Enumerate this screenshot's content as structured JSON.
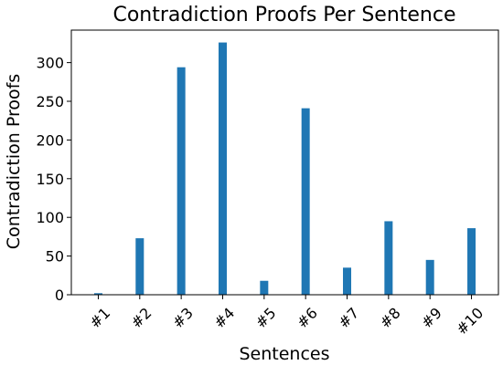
{
  "chart_data": {
    "type": "bar",
    "title": "Contradiction Proofs Per Sentence",
    "xlabel": "Sentences",
    "ylabel": "Contradiction Proofs",
    "categories": [
      "#1",
      "#2",
      "#3",
      "#4",
      "#5",
      "#6",
      "#7",
      "#8",
      "#9",
      "#10"
    ],
    "values": [
      2,
      73,
      294,
      326,
      18,
      241,
      35,
      95,
      45,
      86
    ],
    "ylim": [
      0,
      342
    ],
    "yticks": [
      0,
      50,
      100,
      150,
      200,
      250,
      300
    ],
    "ytick_labels": [
      "0",
      "50",
      "100",
      "150",
      "200",
      "250",
      "300"
    ],
    "bar_color": "#1f77b4",
    "grid": false,
    "legend": "none"
  }
}
